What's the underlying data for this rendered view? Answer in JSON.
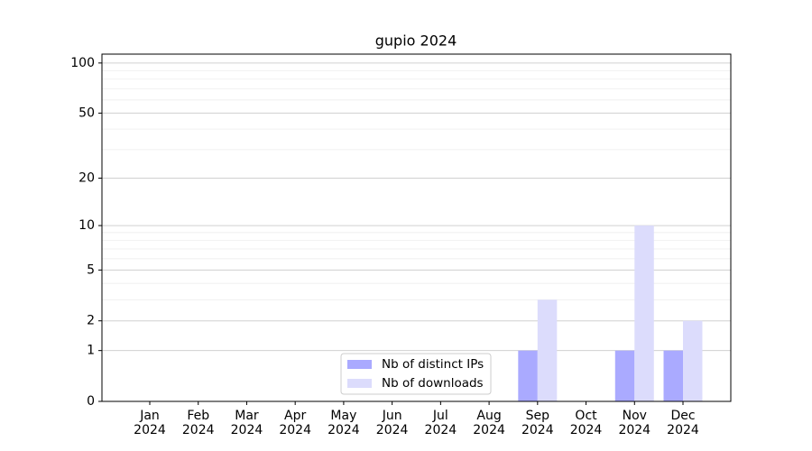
{
  "chart_data": {
    "type": "bar",
    "title": "gupio 2024",
    "categories": [
      "Jan\n2024",
      "Feb\n2024",
      "Mar\n2024",
      "Apr\n2024",
      "May\n2024",
      "Jun\n2024",
      "Jul\n2024",
      "Aug\n2024",
      "Sep\n2024",
      "Oct\n2024",
      "Nov\n2024",
      "Dec\n2024"
    ],
    "series": [
      {
        "name": "Nb of distinct IPs",
        "color": "#aaaaff",
        "values": [
          0,
          0,
          0,
          0,
          0,
          0,
          0,
          0,
          1,
          0,
          1,
          1
        ]
      },
      {
        "name": "Nb of downloads",
        "color": "#dcdcfc",
        "values": [
          0,
          0,
          0,
          0,
          0,
          0,
          0,
          0,
          3,
          0,
          10,
          2
        ]
      }
    ],
    "yscale": "log1p",
    "ylim": [
      0,
      113
    ],
    "yticks": [
      0,
      1,
      2,
      5,
      10,
      20,
      50,
      100
    ],
    "minor_yticks": [
      3,
      4,
      6,
      7,
      8,
      9,
      30,
      40,
      60,
      70,
      80,
      90
    ],
    "grid": true,
    "legend": "lower center"
  }
}
